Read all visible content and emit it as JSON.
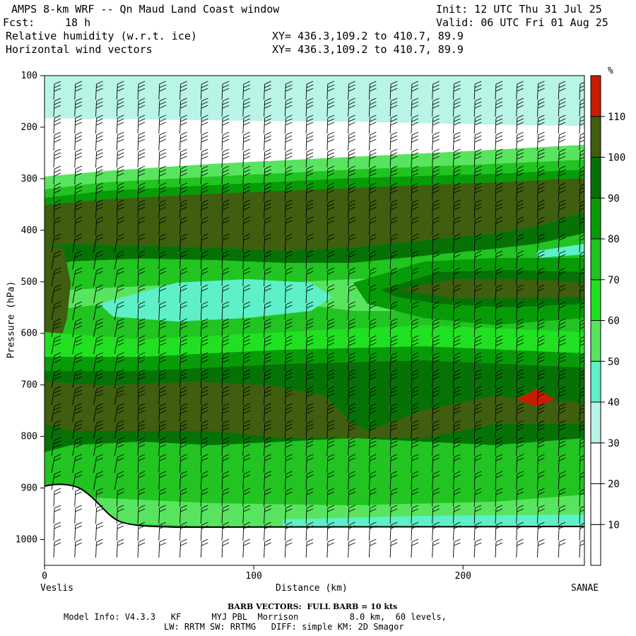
{
  "header": {
    "title": "AMPS 8-km WRF -- Qn Maud Land Coast window",
    "init": "Init: 12 UTC Thu 31 Jul 25",
    "fcst_label": "Fcst:",
    "fcst_value": "18 h",
    "valid": "Valid: 06 UTC Fri 01 Aug 25",
    "field1": "Relative humidity (w.r.t. ice)",
    "field2": "Horizontal wind vectors",
    "xy1": "XY= 436.3,109.2 to 410.7, 89.9",
    "xy2": "XY= 436.3,109.2 to 410.7, 89.9"
  },
  "axes": {
    "ylabel": "Pressure (hPa)",
    "xlabel": "Distance (km)",
    "left_endpoint": "Veslis",
    "right_endpoint": "SANAE"
  },
  "footer": {
    "barb": "BARB VECTORS:  FULL BARB = 10 kts",
    "model_info": "Model Info: V4.3.3   KF      MYJ PBL  Morrison          8.0 km,  60 levels,",
    "physics": "LW: RRTM SW: RRTMG   DIFF: simple KM: 2D Smagor"
  },
  "colorbar": {
    "unit": "%",
    "levels": [
      10,
      20,
      30,
      40,
      50,
      60,
      70,
      80,
      90,
      100,
      110
    ],
    "colors": [
      "#ffffff",
      "#ffffff",
      "#ffffff",
      "#b8f5e6",
      "#5ef0c8",
      "#59e45f",
      "#21e021",
      "#21c421",
      "#079c07",
      "#067206",
      "#3f5e0f",
      "#c81d00"
    ]
  },
  "chart_data": {
    "type": "heatmap",
    "title": "Relative humidity (w.r.t. ice)",
    "xlabel": "Distance (km)",
    "ylabel": "Pressure (hPa)",
    "xlim": [
      0,
      258
    ],
    "ylim": [
      1050,
      100
    ],
    "x_ticks": [
      0,
      100,
      200
    ],
    "y_ticks": [
      100,
      200,
      300,
      400,
      500,
      600,
      700,
      800,
      900,
      1000
    ],
    "field_unit": "%",
    "terrain_surface_hPa": {
      "x": [
        0,
        10,
        20,
        30,
        40,
        50,
        100,
        150,
        200,
        258
      ],
      "p": [
        895,
        892,
        903,
        935,
        965,
        975,
        978,
        976,
        976,
        976
      ]
    },
    "approx_rh_profile": [
      {
        "p_range": [
          100,
          175
        ],
        "rh": "30-40"
      },
      {
        "p_range": [
          175,
          270
        ],
        "rh": "0-30"
      },
      {
        "p_range": [
          280,
          420
        ],
        "rh": "100-110"
      },
      {
        "p_range": [
          430,
          560
        ],
        "rh": "50-80"
      },
      {
        "p_range": [
          600,
          820
        ],
        "rh": "90-110"
      },
      {
        "p_range": [
          820,
          975
        ],
        "rh": "60-80"
      }
    ],
    "max_region": {
      "x_range": [
        225,
        240
      ],
      "p_range": [
        705,
        735
      ],
      "rh": ">110"
    }
  }
}
